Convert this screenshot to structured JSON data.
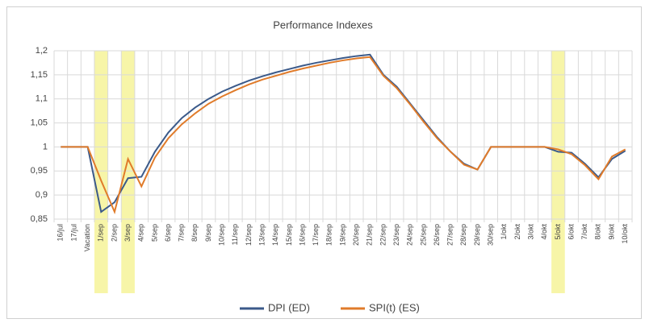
{
  "chart_data": {
    "type": "line",
    "title": "Performance Indexes",
    "categories": [
      "16/jul",
      "17/jul",
      "Vacation",
      "1/sep",
      "2/sep",
      "3/sep",
      "4/sep",
      "5/sep",
      "6/sep",
      "7/sep",
      "8/sep",
      "9/sep",
      "10/sep",
      "11/sep",
      "12/sep",
      "13/sep",
      "14/sep",
      "15/sep",
      "16/sep",
      "17/sep",
      "18/sep",
      "19/sep",
      "20/sep",
      "21/sep",
      "22/sep",
      "23/sep",
      "24/sep",
      "25/sep",
      "26/sep",
      "27/sep",
      "28/sep",
      "29/sep",
      "30/sep",
      "1/okt",
      "2/okt",
      "3/okt",
      "4/okt",
      "5/okt",
      "6/okt",
      "7/okt",
      "8/okt",
      "9/okt",
      "10/okt"
    ],
    "series": [
      {
        "name": "DPI (ED)",
        "color": "#3b5a8a",
        "values": [
          1,
          1,
          1,
          0.865,
          0.885,
          0.935,
          0.938,
          0.99,
          1.03,
          1.06,
          1.082,
          1.1,
          1.115,
          1.127,
          1.138,
          1.147,
          1.155,
          1.162,
          1.169,
          1.175,
          1.18,
          1.185,
          1.189,
          1.192,
          1.15,
          1.125,
          1.09,
          1.055,
          1.02,
          0.99,
          0.965,
          0.953,
          1,
          1,
          1,
          1,
          1,
          0.99,
          0.988,
          0.965,
          0.937,
          0.975,
          0.992
        ]
      },
      {
        "name": "SPI(t) (ES)",
        "color": "#e07b2a",
        "values": [
          1,
          1,
          1,
          0.93,
          0.865,
          0.975,
          0.918,
          0.978,
          1.018,
          1.047,
          1.07,
          1.09,
          1.105,
          1.118,
          1.13,
          1.14,
          1.148,
          1.156,
          1.163,
          1.169,
          1.175,
          1.18,
          1.184,
          1.187,
          1.148,
          1.122,
          1.088,
          1.052,
          1.018,
          0.99,
          0.963,
          0.953,
          1,
          1,
          1,
          1,
          1,
          0.995,
          0.985,
          0.962,
          0.933,
          0.98,
          0.995
        ]
      }
    ],
    "ylim": [
      0.85,
      1.2
    ],
    "yticks": [
      {
        "value": 0.85,
        "label": "0,85"
      },
      {
        "value": 0.9,
        "label": "0,9"
      },
      {
        "value": 0.95,
        "label": "0,95"
      },
      1,
      {
        "value": 1.05,
        "label": "1,05"
      },
      {
        "value": 1.1,
        "label": "1,1"
      },
      {
        "value": 1.15,
        "label": "1,15"
      },
      {
        "value": 1.2,
        "label": "1,2"
      }
    ],
    "grid": true,
    "legend": "bottom",
    "highlight_indices": [
      3,
      5,
      37
    ],
    "highlight_color": "#f7f5a8"
  }
}
